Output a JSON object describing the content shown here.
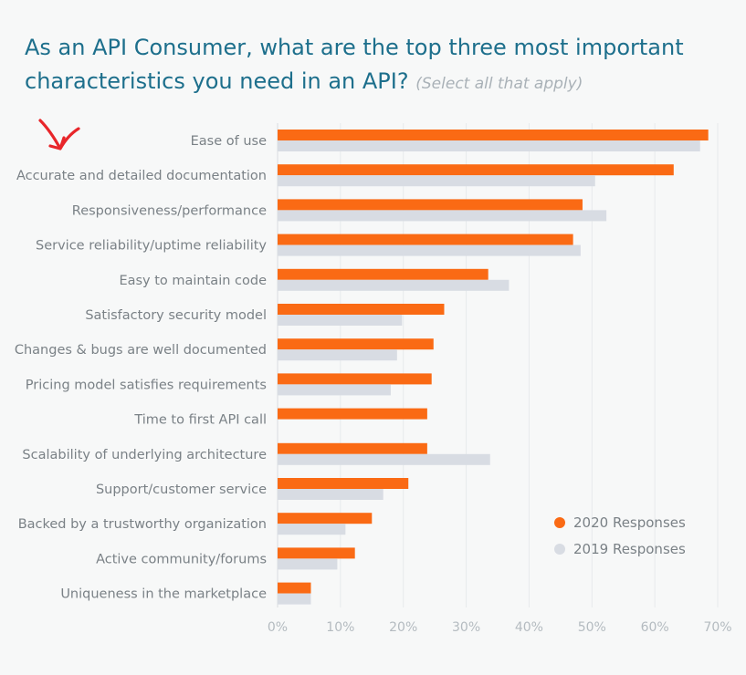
{
  "title": "As an API Consumer, what are the top three most important characteristics you need in an API?",
  "subtitle": "(Select all that apply)",
  "colors": {
    "series_2020": "#fa6a14",
    "series_2019": "#d8dce3",
    "title": "#1d6f8c",
    "annotation_arrow": "#e8262a"
  },
  "annotation_icon": "red-hand-drawn-arrow-icon",
  "chart_data": {
    "type": "bar",
    "orientation": "horizontal",
    "categories": [
      "Ease of use",
      "Accurate and detailed documentation",
      "Responsiveness/performance",
      "Service reliability/uptime reliability",
      "Easy to maintain code",
      "Satisfactory security model",
      "Changes & bugs are well documented",
      "Pricing model satisfies requirements",
      "Time to first API call",
      "Scalability of underlying architecture",
      "Support/customer service",
      "Backed by a trustworthy organization",
      "Active community/forums",
      "Uniqueness in the marketplace"
    ],
    "series": [
      {
        "name": "2020 Responses",
        "values": [
          68.5,
          63,
          48.5,
          47,
          33.5,
          26.5,
          24.8,
          24.5,
          23.8,
          23.8,
          20.8,
          15,
          12.3,
          5.3
        ]
      },
      {
        "name": "2019 Responses",
        "values": [
          67.2,
          50.5,
          52.3,
          48.2,
          36.8,
          19.8,
          19,
          18,
          null,
          33.8,
          16.8,
          10.8,
          9.5,
          5.3
        ]
      }
    ],
    "xlim": [
      0,
      70
    ],
    "x_ticks": [
      "0%",
      "10%",
      "20%",
      "30%",
      "40%",
      "50%",
      "60%",
      "70%"
    ],
    "xlabel": "",
    "ylabel": "",
    "grid": "vertical",
    "legend": "bottom-right"
  }
}
